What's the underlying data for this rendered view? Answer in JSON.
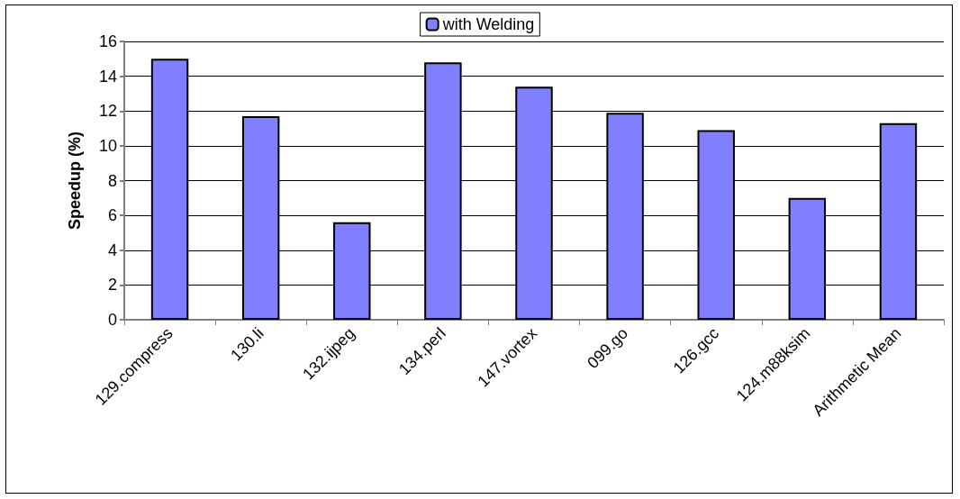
{
  "chart_data": {
    "type": "bar",
    "ylabel": "Speedup (%)",
    "categories": [
      "129.compress",
      "130.li",
      "132.ijpeg",
      "134.perl",
      "147.vortex",
      "099.go",
      "126.gcc",
      "124.m88ksim",
      "Arithmetic Mean"
    ],
    "series": [
      {
        "name": "with Welding",
        "color": "#8080ff",
        "values": [
          15.0,
          11.7,
          5.6,
          14.8,
          13.4,
          11.9,
          10.9,
          7.0,
          11.3
        ]
      }
    ],
    "ylim": [
      0,
      16
    ],
    "yticks": [
      0,
      2,
      4,
      6,
      8,
      10,
      12,
      14,
      16
    ],
    "grid": "y",
    "legend": "top"
  }
}
